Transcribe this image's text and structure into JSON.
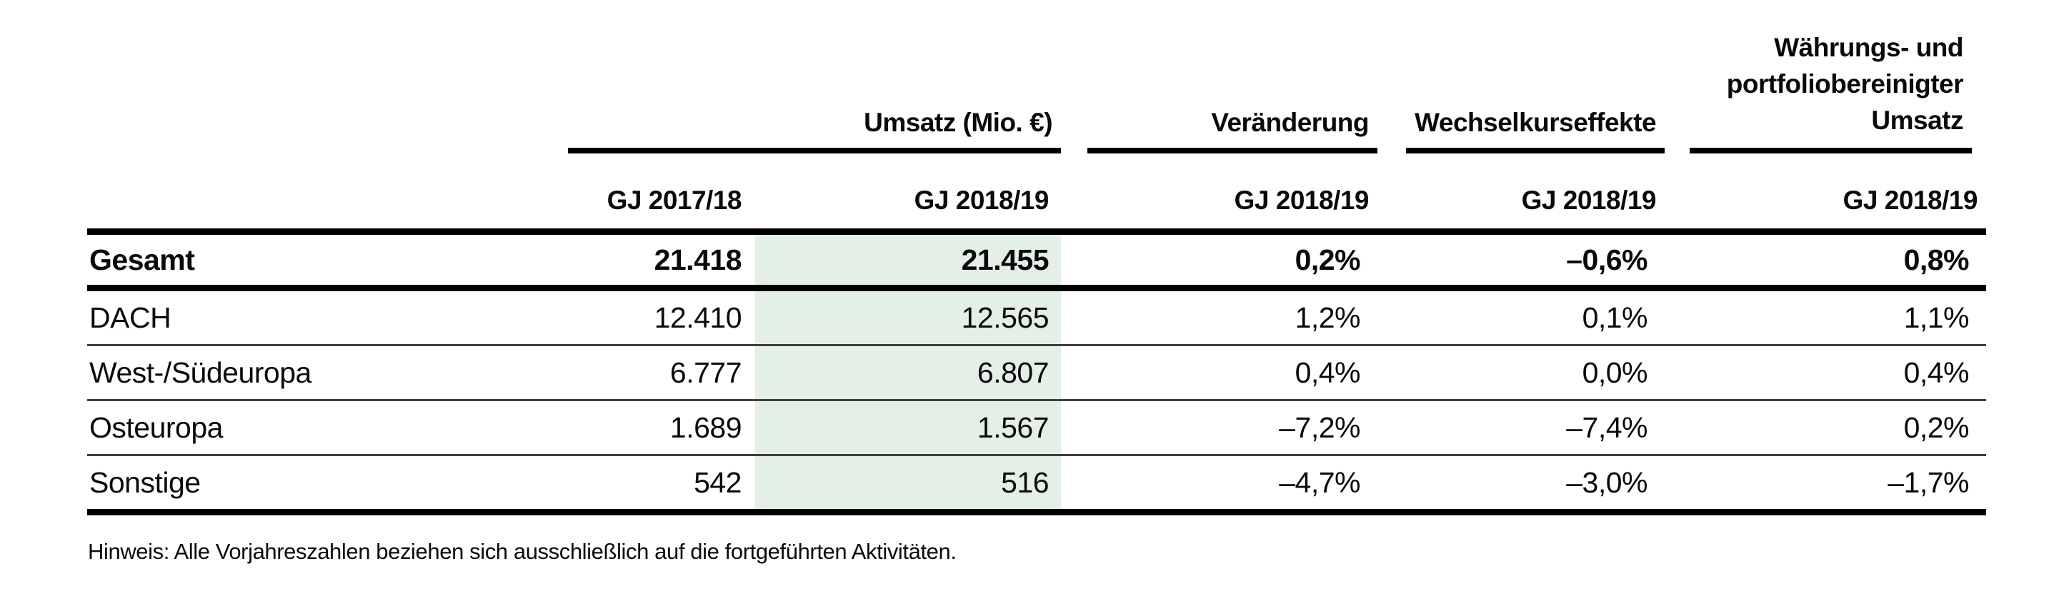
{
  "table": {
    "column_groups": {
      "umsatz": "Umsatz (Mio. €)",
      "veraenderung": "Veränderung",
      "wechselkurseffekte": "Wechselkurseffekte",
      "adjusted_lines": [
        "Währungs- und",
        "portfoliobereinigter",
        "Umsatz"
      ]
    },
    "subheaders": [
      "GJ 2017/18",
      "GJ 2018/19",
      "GJ 2018/19",
      "GJ 2018/19",
      "GJ 2018/19"
    ],
    "total_row": {
      "label": "Gesamt",
      "fy2017_18": "21.418",
      "fy2018_19": "21.455",
      "change": "0,2%",
      "fx_effects": "–0,6%",
      "adjusted": "0,8%"
    },
    "rows": [
      {
        "label": "DACH",
        "fy2017_18": "12.410",
        "fy2018_19": "12.565",
        "change": "1,2%",
        "fx_effects": "0,1%",
        "adjusted": "1,1%"
      },
      {
        "label": "West-/Südeuropa",
        "fy2017_18": "6.777",
        "fy2018_19": "6.807",
        "change": "0,4%",
        "fx_effects": "0,0%",
        "adjusted": "0,4%"
      },
      {
        "label": "Osteuropa",
        "fy2017_18": "1.689",
        "fy2018_19": "1.567",
        "change": "–7,2%",
        "fx_effects": "–7,4%",
        "adjusted": "0,2%"
      },
      {
        "label": "Sonstige",
        "fy2017_18": "542",
        "fy2018_19": "516",
        "change": "–4,7%",
        "fx_effects": "–3,0%",
        "adjusted": "–1,7%"
      }
    ]
  },
  "footnote": "Hinweis: Alle Vorjahreszahlen beziehen sich ausschließlich auf die fortgeführten Aktivitäten.",
  "colors": {
    "highlight_column": "#e4efe8",
    "thick_rule": "#000000",
    "thin_rule": "#3f3f3f"
  }
}
